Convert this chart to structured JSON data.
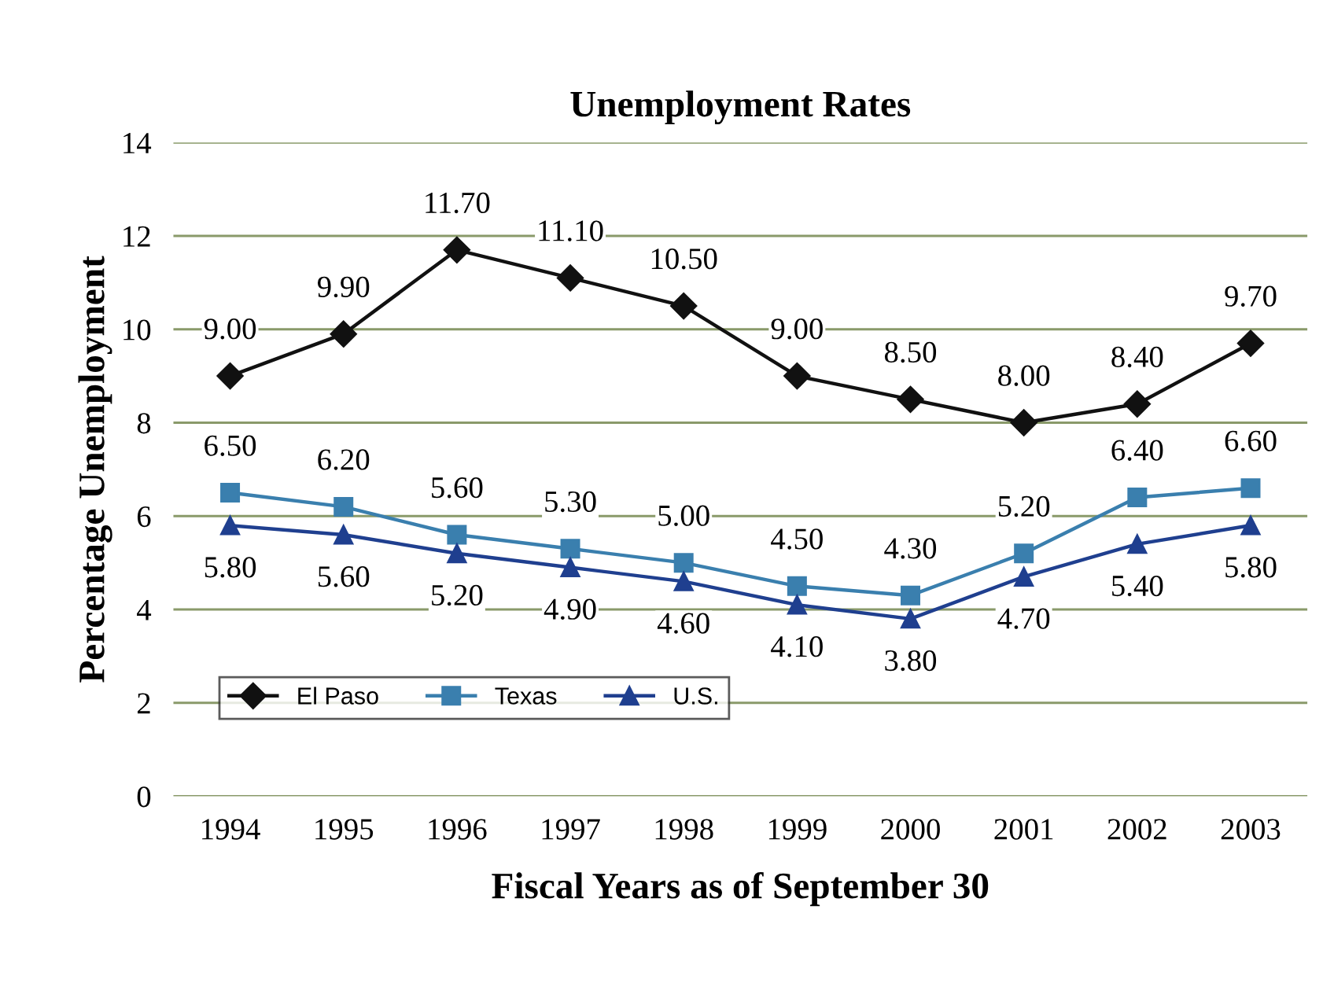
{
  "chart_data": {
    "type": "line",
    "title": "Unemployment Rates",
    "xlabel": "Fiscal Years as of September 30",
    "ylabel": "Percentage Unemployment",
    "categories": [
      "1994",
      "1995",
      "1996",
      "1997",
      "1998",
      "1999",
      "2000",
      "2001",
      "2002",
      "2003"
    ],
    "series": [
      {
        "name": "El Paso",
        "color": "#111111",
        "marker": "diamond",
        "values": [
          9.0,
          9.9,
          11.7,
          11.1,
          10.5,
          9.0,
          8.5,
          8.0,
          8.4,
          9.7
        ],
        "value_labels": [
          "9.00",
          "9.90",
          "11.70",
          "11.10",
          "10.50",
          "9.00",
          "8.50",
          "8.00",
          "8.40",
          "9.70"
        ]
      },
      {
        "name": "Texas",
        "color": "#3a7fae",
        "marker": "square",
        "values": [
          6.5,
          6.2,
          5.6,
          5.3,
          5.0,
          4.5,
          4.3,
          5.2,
          6.4,
          6.6
        ],
        "value_labels": [
          "6.50",
          "6.20",
          "5.60",
          "5.30",
          "5.00",
          "4.50",
          "4.30",
          "5.20",
          "6.40",
          "6.60"
        ]
      },
      {
        "name": "U.S.",
        "color": "#1f3f8f",
        "marker": "triangle",
        "values": [
          5.8,
          5.6,
          5.2,
          4.9,
          4.6,
          4.1,
          3.8,
          4.7,
          5.4,
          5.8
        ],
        "value_labels": [
          "5.80",
          "5.60",
          "5.20",
          "4.90",
          "4.60",
          "4.10",
          "3.80",
          "4.70",
          "5.40",
          "5.80"
        ]
      }
    ],
    "ylim": [
      0,
      14
    ],
    "yticks": [
      0,
      2,
      4,
      6,
      8,
      10,
      12,
      14
    ],
    "grid": "y",
    "legend": "bottom left",
    "line_style": "solid"
  }
}
